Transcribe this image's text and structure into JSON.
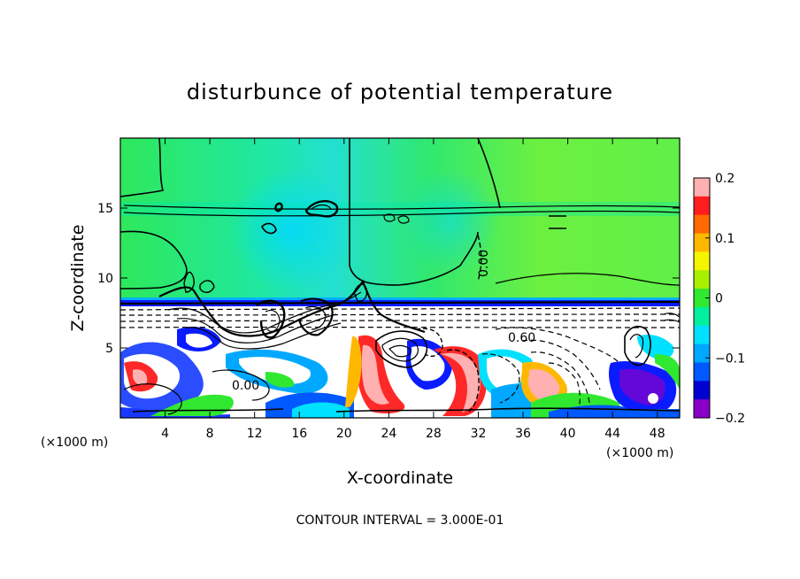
{
  "chart_data": {
    "type": "heatmap",
    "title": "disturbunce of potential temperature",
    "xlabel": "X-coordinate",
    "ylabel": "Z-coordinate",
    "x_unit": "(×1000 m)",
    "y_unit": "(×1000 m)",
    "xlim": [
      0,
      50
    ],
    "ylim": [
      0,
      20
    ],
    "x_ticks": [
      4,
      8,
      12,
      16,
      20,
      24,
      28,
      32,
      36,
      40,
      44,
      48
    ],
    "y_ticks": [
      5,
      10,
      15
    ],
    "colorbar": {
      "range": [
        -0.2,
        0.2
      ],
      "tick_values": [
        0.2,
        0.1,
        0,
        -0.1,
        -0.2
      ],
      "tick_labels": [
        "0.2",
        "0.1",
        "0",
        "−0.1",
        "−0.2"
      ],
      "colors": [
        "#ffb0b0",
        "#ff1e1e",
        "#ff6a00",
        "#ffb800",
        "#f5f500",
        "#a8f000",
        "#30e830",
        "#00f0a0",
        "#00e0ff",
        "#00a8ff",
        "#0058ff",
        "#0000d0",
        "#8a00c8"
      ]
    },
    "contour_labels": [
      "0.00",
      "0.00",
      "0.60"
    ],
    "footnote": "CONTOUR INTERVAL = 3.000E-01"
  }
}
